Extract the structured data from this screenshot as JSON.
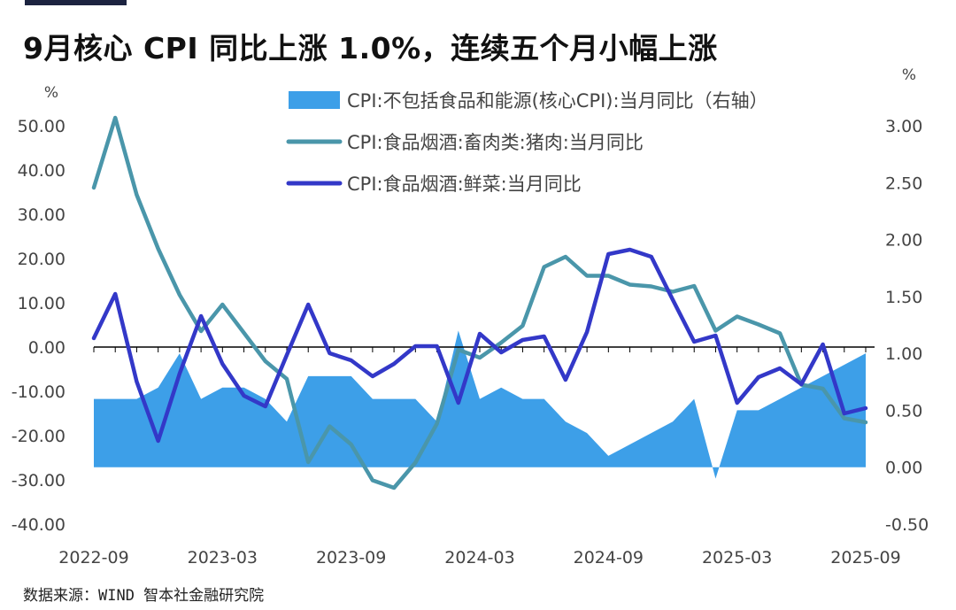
{
  "header": {
    "title": "9月核心 CPI 同比上涨 1.0%，连续五个月小幅上涨"
  },
  "footer": {
    "source": "数据来源：WIND 智本社金融研究院"
  },
  "colors": {
    "area": "#3d9fe8",
    "pork_line": "#4a96aa",
    "veg_line": "#3338c8",
    "axis": "#000000",
    "text": "#444444"
  },
  "chart_data": {
    "type": "line",
    "x": [
      "2022-09",
      "2022-10",
      "2022-11",
      "2022-12",
      "2023-01",
      "2023-02",
      "2023-03",
      "2023-04",
      "2023-05",
      "2023-06",
      "2023-07",
      "2023-08",
      "2023-09",
      "2023-10",
      "2023-11",
      "2023-12",
      "2024-01",
      "2024-02",
      "2024-03",
      "2024-04",
      "2024-05",
      "2024-06",
      "2024-07",
      "2024-08",
      "2024-09",
      "2024-10",
      "2024-11",
      "2024-12",
      "2025-01",
      "2025-02",
      "2025-03",
      "2025-04",
      "2025-05",
      "2025-06",
      "2025-07",
      "2025-08",
      "2025-09"
    ],
    "x_tick_labels": [
      "2022-09",
      "2023-03",
      "2023-09",
      "2024-03",
      "2024-09",
      "2025-03",
      "2025-09"
    ],
    "y_left": {
      "unit": "%",
      "ylim": [
        -40,
        50
      ],
      "ticks": [
        "50.00",
        "40.00",
        "30.00",
        "20.00",
        "10.00",
        "0.00",
        "-10.00",
        "-20.00",
        "-30.00",
        "-40.00"
      ]
    },
    "y_right": {
      "unit": "%",
      "ylim": [
        -0.5,
        3.0
      ],
      "ticks": [
        "3.00",
        "2.50",
        "2.00",
        "1.50",
        "1.00",
        "0.50",
        "0.00",
        "-0.50"
      ]
    },
    "legend_position": "top-right",
    "grid": false,
    "series": [
      {
        "name": "CPI:不包括食品和能源(核心CPI):当月同比（右轴）",
        "type": "area",
        "axis": "right",
        "values": [
          0.6,
          0.6,
          0.6,
          0.7,
          1.0,
          0.6,
          0.7,
          0.7,
          0.6,
          0.4,
          0.8,
          0.8,
          0.8,
          0.6,
          0.6,
          0.6,
          0.4,
          1.2,
          0.6,
          0.7,
          0.6,
          0.6,
          0.4,
          0.3,
          0.1,
          0.2,
          0.3,
          0.4,
          0.6,
          -0.1,
          0.5,
          0.5,
          0.6,
          0.7,
          0.8,
          0.9,
          1.0
        ]
      },
      {
        "name": "CPI:食品烟酒:畜肉类:猪肉:当月同比",
        "type": "line",
        "axis": "left",
        "values": [
          36.0,
          51.8,
          34.4,
          22.2,
          11.8,
          3.6,
          9.6,
          3.2,
          -3.2,
          -7.2,
          -26.0,
          -17.9,
          -22.0,
          -30.1,
          -31.8,
          -26.1,
          -17.3,
          -0.6,
          -2.4,
          1.0,
          4.8,
          18.1,
          20.4,
          16.1,
          16.1,
          14.1,
          13.7,
          12.5,
          13.8,
          3.7,
          6.9,
          5.1,
          3.1,
          -8.5,
          -9.4,
          -16.1,
          -17.0
        ]
      },
      {
        "name": "CPI:食品烟酒:鲜菜:当月同比",
        "type": "line",
        "axis": "left",
        "values": [
          2.0,
          12.0,
          -7.8,
          -21.2,
          -6.0,
          7.0,
          -3.8,
          -11.0,
          -13.4,
          -1.8,
          9.6,
          -1.4,
          -3.0,
          -6.6,
          -3.8,
          0.2,
          0.2,
          -12.6,
          3.0,
          -1.2,
          1.6,
          2.4,
          -7.4,
          3.4,
          21.0,
          22.0,
          20.4,
          10.7,
          1.2,
          2.6,
          -12.6,
          -6.8,
          -4.8,
          -8.4,
          0.6,
          -15.0,
          -13.8
        ]
      }
    ]
  }
}
